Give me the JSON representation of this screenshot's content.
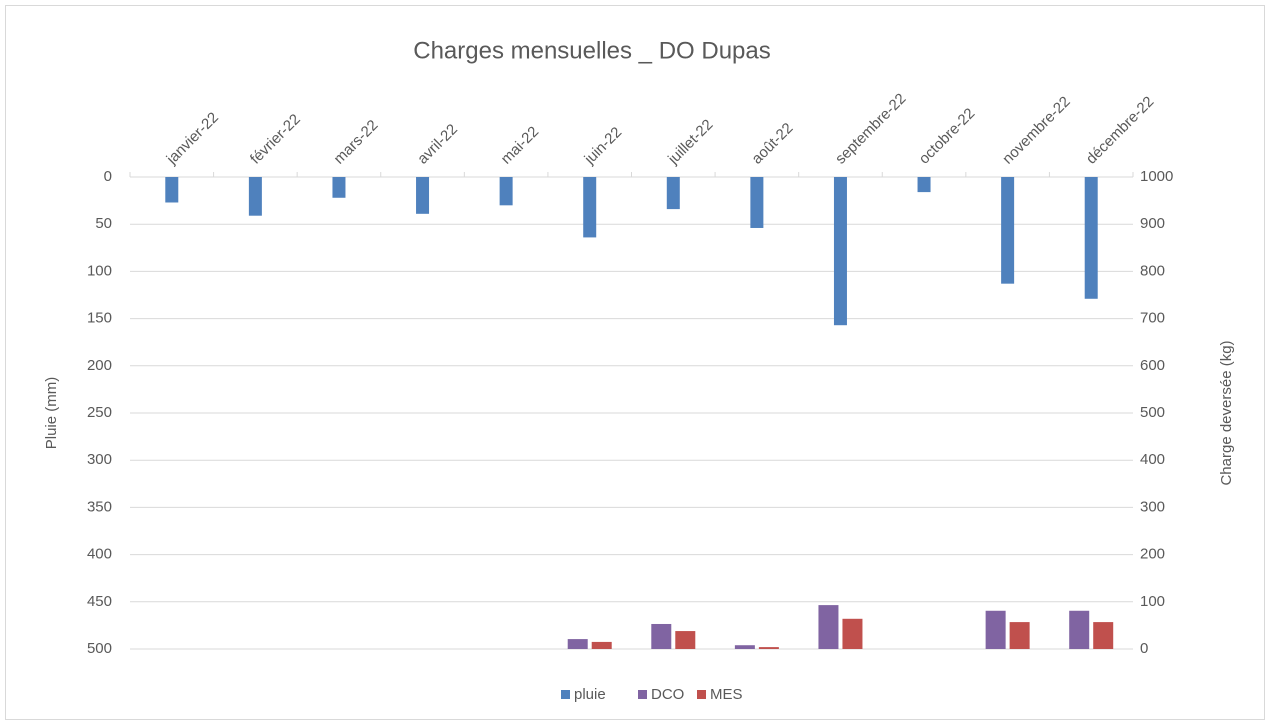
{
  "chart_data": {
    "type": "bar",
    "title": "Charges mensuelles _ DO Dupas",
    "categories": [
      "janvier-22",
      "février-22",
      "mars-22",
      "avril-22",
      "mai-22",
      "juin-22",
      "juillet-22",
      "août-22",
      "septembre-22",
      "octobre-22",
      "novembre-22",
      "décembre-22"
    ],
    "series": [
      {
        "name": "pluie",
        "color": "#4f81bd",
        "axis": "y",
        "values": [
          27,
          41,
          22,
          39,
          30,
          64,
          34,
          54,
          157,
          16,
          113,
          129
        ]
      },
      {
        "name": "DCO",
        "color": "#8064a2",
        "axis": "y2",
        "values": [
          null,
          null,
          null,
          null,
          null,
          21,
          53,
          8,
          93,
          null,
          81,
          81
        ]
      },
      {
        "name": "MES",
        "color": "#c0504d",
        "axis": "y2",
        "values": [
          null,
          null,
          null,
          null,
          null,
          15,
          38,
          4,
          64,
          null,
          57,
          57
        ]
      }
    ],
    "ylabel": "Pluie (mm)",
    "y2label": "Charge deversée (kg)",
    "ylim": [
      0,
      500
    ],
    "yticks": [
      0,
      50,
      100,
      150,
      200,
      250,
      300,
      350,
      400,
      450,
      500
    ],
    "yinverted": true,
    "y2lim": [
      0,
      1000
    ],
    "y2ticks": [
      0,
      100,
      200,
      300,
      400,
      500,
      600,
      700,
      800,
      900,
      1000
    ],
    "grid": true,
    "legend": "bottom"
  }
}
